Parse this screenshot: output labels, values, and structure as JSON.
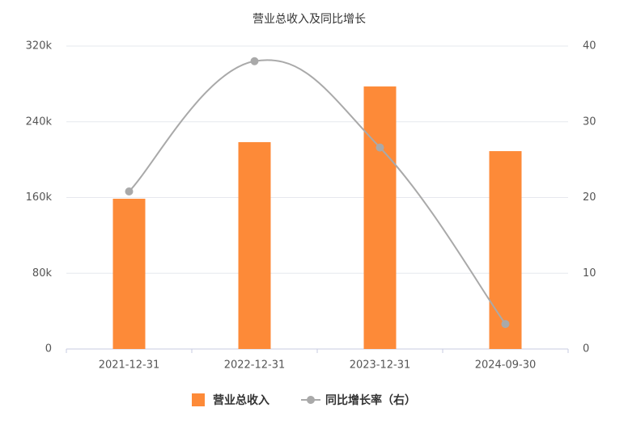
{
  "chart_data": {
    "type": "bar",
    "title": "营业总收入及同比增长",
    "categories": [
      "2021-12-31",
      "2022-12-31",
      "2023-12-31",
      "2024-09-30"
    ],
    "series": [
      {
        "name": "营业总收入",
        "type": "bar",
        "color": "#fd8a38",
        "values": [
          158700,
          218500,
          277300,
          209000
        ]
      },
      {
        "name": "同比增长率（右）",
        "type": "line",
        "axis": "y2",
        "color": "#a9a9a9",
        "values": [
          20.8,
          38.0,
          26.6,
          3.3
        ]
      }
    ],
    "ylim": [
      0,
      320000
    ],
    "yticks": [
      0,
      {
        "value": 80000,
        "label": "80k"
      },
      {
        "value": 160000,
        "label": "160k"
      },
      {
        "value": 240000,
        "label": "240k"
      },
      {
        "value": 320000,
        "label": "320k"
      }
    ],
    "y2lim": [
      0,
      40
    ],
    "y2ticks": [
      0,
      10,
      20,
      30,
      40
    ],
    "grid": true
  }
}
